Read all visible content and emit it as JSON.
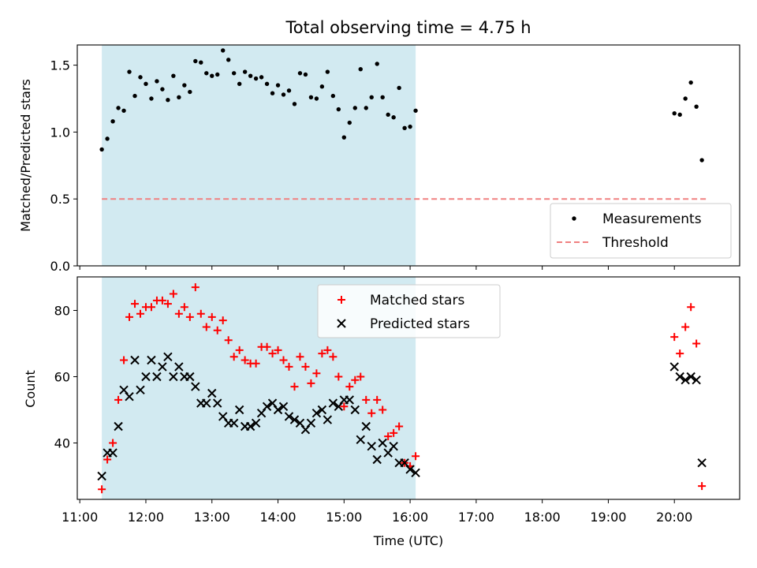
{
  "chart_data": [
    {
      "type": "scatter",
      "title": "Total observing time = 4.75 h",
      "xlabel": "",
      "ylabel": "Matched/Predicted stars",
      "xlim": [
        "11:00",
        "21:00"
      ],
      "ylim": [
        0,
        1.65
      ],
      "yticks": [
        0.0,
        0.5,
        1.0,
        1.5
      ],
      "ytick_labels": [
        "0.0",
        "0.5",
        "1.0",
        "1.5"
      ],
      "shaded_interval": {
        "start": "11:20",
        "end": "16:05",
        "color": "#add8e6"
      },
      "threshold": {
        "name": "Threshold",
        "value": 0.5,
        "x": [
          "11:20",
          "20:30"
        ],
        "color": "#f08080"
      },
      "legend_position": "lower right",
      "series": [
        {
          "name": "Measurements",
          "color": "#000000",
          "marker": "dot",
          "points": [
            [
              "11:20",
              0.87
            ],
            [
              "11:25",
              0.95
            ],
            [
              "11:30",
              1.08
            ],
            [
              "11:35",
              1.18
            ],
            [
              "11:40",
              1.16
            ],
            [
              "11:45",
              1.45
            ],
            [
              "11:50",
              1.27
            ],
            [
              "11:55",
              1.41
            ],
            [
              "12:00",
              1.36
            ],
            [
              "12:05",
              1.25
            ],
            [
              "12:10",
              1.38
            ],
            [
              "12:15",
              1.32
            ],
            [
              "12:20",
              1.24
            ],
            [
              "12:25",
              1.42
            ],
            [
              "12:30",
              1.26
            ],
            [
              "12:35",
              1.35
            ],
            [
              "12:40",
              1.3
            ],
            [
              "12:45",
              1.53
            ],
            [
              "12:50",
              1.52
            ],
            [
              "12:55",
              1.44
            ],
            [
              "13:00",
              1.42
            ],
            [
              "13:05",
              1.43
            ],
            [
              "13:10",
              1.61
            ],
            [
              "13:15",
              1.54
            ],
            [
              "13:20",
              1.44
            ],
            [
              "13:25",
              1.36
            ],
            [
              "13:30",
              1.45
            ],
            [
              "13:35",
              1.42
            ],
            [
              "13:40",
              1.4
            ],
            [
              "13:45",
              1.41
            ],
            [
              "13:50",
              1.36
            ],
            [
              "13:55",
              1.29
            ],
            [
              "14:00",
              1.35
            ],
            [
              "14:05",
              1.28
            ],
            [
              "14:10",
              1.31
            ],
            [
              "14:15",
              1.21
            ],
            [
              "14:20",
              1.44
            ],
            [
              "14:25",
              1.43
            ],
            [
              "14:30",
              1.26
            ],
            [
              "14:35",
              1.25
            ],
            [
              "14:40",
              1.34
            ],
            [
              "14:45",
              1.45
            ],
            [
              "14:50",
              1.27
            ],
            [
              "14:55",
              1.17
            ],
            [
              "15:00",
              0.96
            ],
            [
              "15:05",
              1.07
            ],
            [
              "15:10",
              1.18
            ],
            [
              "15:15",
              1.47
            ],
            [
              "15:20",
              1.18
            ],
            [
              "15:25",
              1.26
            ],
            [
              "15:30",
              1.51
            ],
            [
              "15:35",
              1.26
            ],
            [
              "15:40",
              1.13
            ],
            [
              "15:45",
              1.11
            ],
            [
              "15:50",
              1.33
            ],
            [
              "15:55",
              1.03
            ],
            [
              "16:00",
              1.04
            ],
            [
              "16:05",
              1.16
            ],
            [
              "20:00",
              1.14
            ],
            [
              "20:05",
              1.13
            ],
            [
              "20:10",
              1.25
            ],
            [
              "20:15",
              1.37
            ],
            [
              "20:20",
              1.19
            ],
            [
              "20:25",
              0.79
            ]
          ]
        }
      ]
    },
    {
      "type": "scatter",
      "title": "",
      "xlabel": "Time (UTC)",
      "ylabel": "Count",
      "xlim": [
        "11:00",
        "21:00"
      ],
      "xticks": [
        "11:00",
        "12:00",
        "13:00",
        "14:00",
        "15:00",
        "16:00",
        "17:00",
        "18:00",
        "19:00",
        "20:00"
      ],
      "xtick_labels": [
        "11:00",
        "12:00",
        "13:00",
        "14:00",
        "15:00",
        "16:00",
        "17:00",
        "18:00",
        "19:00",
        "20:00"
      ],
      "ylim": [
        23,
        90
      ],
      "yticks": [
        40,
        60,
        80
      ],
      "ytick_labels": [
        "40",
        "60",
        "80"
      ],
      "shaded_interval": {
        "start": "11:20",
        "end": "16:05",
        "color": "#add8e6"
      },
      "legend_position": "upper center",
      "series": [
        {
          "name": "Matched stars",
          "color": "#ff0000",
          "marker": "plus",
          "points": [
            [
              "11:20",
              26
            ],
            [
              "11:25",
              35
            ],
            [
              "11:30",
              40
            ],
            [
              "11:35",
              53
            ],
            [
              "11:40",
              65
            ],
            [
              "11:45",
              78
            ],
            [
              "11:50",
              82
            ],
            [
              "11:55",
              79
            ],
            [
              "12:00",
              81
            ],
            [
              "12:05",
              81
            ],
            [
              "12:10",
              83
            ],
            [
              "12:15",
              83
            ],
            [
              "12:20",
              82
            ],
            [
              "12:25",
              85
            ],
            [
              "12:30",
              79
            ],
            [
              "12:35",
              81
            ],
            [
              "12:40",
              78
            ],
            [
              "12:45",
              87
            ],
            [
              "12:50",
              79
            ],
            [
              "12:55",
              75
            ],
            [
              "13:00",
              78
            ],
            [
              "13:05",
              74
            ],
            [
              "13:10",
              77
            ],
            [
              "13:15",
              71
            ],
            [
              "13:20",
              66
            ],
            [
              "13:25",
              68
            ],
            [
              "13:30",
              65
            ],
            [
              "13:35",
              64
            ],
            [
              "13:40",
              64
            ],
            [
              "13:45",
              69
            ],
            [
              "13:50",
              69
            ],
            [
              "13:55",
              67
            ],
            [
              "14:00",
              68
            ],
            [
              "14:05",
              65
            ],
            [
              "14:10",
              63
            ],
            [
              "14:15",
              57
            ],
            [
              "14:20",
              66
            ],
            [
              "14:25",
              63
            ],
            [
              "14:30",
              58
            ],
            [
              "14:35",
              61
            ],
            [
              "14:40",
              67
            ],
            [
              "14:45",
              68
            ],
            [
              "14:50",
              66
            ],
            [
              "14:55",
              60
            ],
            [
              "15:00",
              51
            ],
            [
              "15:05",
              57
            ],
            [
              "15:10",
              59
            ],
            [
              "15:15",
              60
            ],
            [
              "15:20",
              53
            ],
            [
              "15:25",
              49
            ],
            [
              "15:30",
              53
            ],
            [
              "15:35",
              50
            ],
            [
              "15:40",
              42
            ],
            [
              "15:45",
              43
            ],
            [
              "15:50",
              45
            ],
            [
              "15:55",
              34
            ],
            [
              "16:00",
              33
            ],
            [
              "16:05",
              36
            ],
            [
              "20:00",
              72
            ],
            [
              "20:05",
              67
            ],
            [
              "20:10",
              75
            ],
            [
              "20:15",
              81
            ],
            [
              "20:20",
              70
            ],
            [
              "20:25",
              27
            ]
          ]
        },
        {
          "name": "Predicted stars",
          "color": "#000000",
          "marker": "x",
          "points": [
            [
              "11:20",
              30
            ],
            [
              "11:25",
              37
            ],
            [
              "11:30",
              37
            ],
            [
              "11:35",
              45
            ],
            [
              "11:40",
              56
            ],
            [
              "11:45",
              54
            ],
            [
              "11:50",
              65
            ],
            [
              "11:55",
              56
            ],
            [
              "12:00",
              60
            ],
            [
              "12:05",
              65
            ],
            [
              "12:10",
              60
            ],
            [
              "12:15",
              63
            ],
            [
              "12:20",
              66
            ],
            [
              "12:25",
              60
            ],
            [
              "12:30",
              63
            ],
            [
              "12:35",
              60
            ],
            [
              "12:40",
              60
            ],
            [
              "12:45",
              57
            ],
            [
              "12:50",
              52
            ],
            [
              "12:55",
              52
            ],
            [
              "13:00",
              55
            ],
            [
              "13:05",
              52
            ],
            [
              "13:10",
              48
            ],
            [
              "13:15",
              46
            ],
            [
              "13:20",
              46
            ],
            [
              "13:25",
              50
            ],
            [
              "13:30",
              45
            ],
            [
              "13:35",
              45
            ],
            [
              "13:40",
              46
            ],
            [
              "13:45",
              49
            ],
            [
              "13:50",
              51
            ],
            [
              "13:55",
              52
            ],
            [
              "14:00",
              50
            ],
            [
              "14:05",
              51
            ],
            [
              "14:10",
              48
            ],
            [
              "14:15",
              47
            ],
            [
              "14:20",
              46
            ],
            [
              "14:25",
              44
            ],
            [
              "14:30",
              46
            ],
            [
              "14:35",
              49
            ],
            [
              "14:40",
              50
            ],
            [
              "14:45",
              47
            ],
            [
              "14:50",
              52
            ],
            [
              "14:55",
              51
            ],
            [
              "15:00",
              53
            ],
            [
              "15:05",
              53
            ],
            [
              "15:10",
              50
            ],
            [
              "15:15",
              41
            ],
            [
              "15:20",
              45
            ],
            [
              "15:25",
              39
            ],
            [
              "15:30",
              35
            ],
            [
              "15:35",
              40
            ],
            [
              "15:40",
              37
            ],
            [
              "15:45",
              39
            ],
            [
              "15:50",
              34
            ],
            [
              "15:55",
              34
            ],
            [
              "16:00",
              32
            ],
            [
              "16:05",
              31
            ],
            [
              "20:00",
              63
            ],
            [
              "20:05",
              60
            ],
            [
              "20:10",
              59
            ],
            [
              "20:15",
              60
            ],
            [
              "20:20",
              59
            ],
            [
              "20:25",
              34
            ]
          ]
        }
      ]
    }
  ]
}
